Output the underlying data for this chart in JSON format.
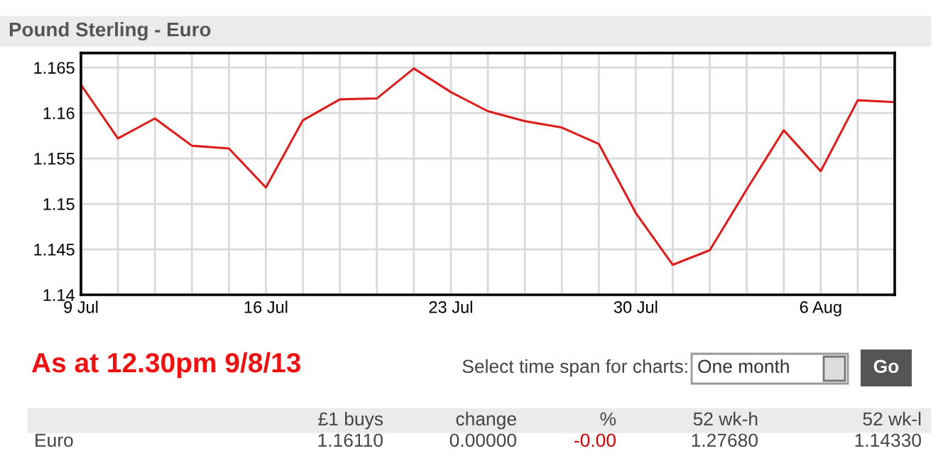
{
  "chart_data": {
    "type": "line",
    "title": "Pound Sterling - Euro",
    "categories": [
      "9 Jul",
      null,
      null,
      null,
      null,
      "16 Jul",
      null,
      null,
      null,
      null,
      "23 Jul",
      null,
      null,
      null,
      null,
      "30 Jul",
      null,
      null,
      null,
      null,
      "6 Aug",
      null,
      null
    ],
    "series": [
      {
        "color": "#dd1c1c",
        "values": [
          1.1631,
          1.1572,
          1.1594,
          1.1564,
          1.1561,
          1.1518,
          1.1592,
          1.1615,
          1.1616,
          1.1649,
          1.1623,
          1.1602,
          1.1591,
          1.1584,
          1.1566,
          1.149,
          1.1433,
          1.1449,
          1.1516,
          1.1581,
          1.1536,
          1.1614,
          1.1612
        ]
      }
    ],
    "ylim": [
      1.14,
      1.1666
    ],
    "yticks": [
      1.14,
      1.145,
      1.15,
      1.155,
      1.16,
      1.165
    ],
    "grid": true,
    "marker": "none",
    "line_style": "solid",
    "annotations": [
      "As at 12.30pm 9/8/13",
      "Select time span for charts:",
      "One month",
      "Go",
      "£1 buys",
      "change",
      "%",
      "52 wk-h",
      "52 wk-l",
      "Euro",
      "1.16110",
      "0.00000",
      "-0.00",
      "1.27680",
      "1.14330"
    ]
  }
}
